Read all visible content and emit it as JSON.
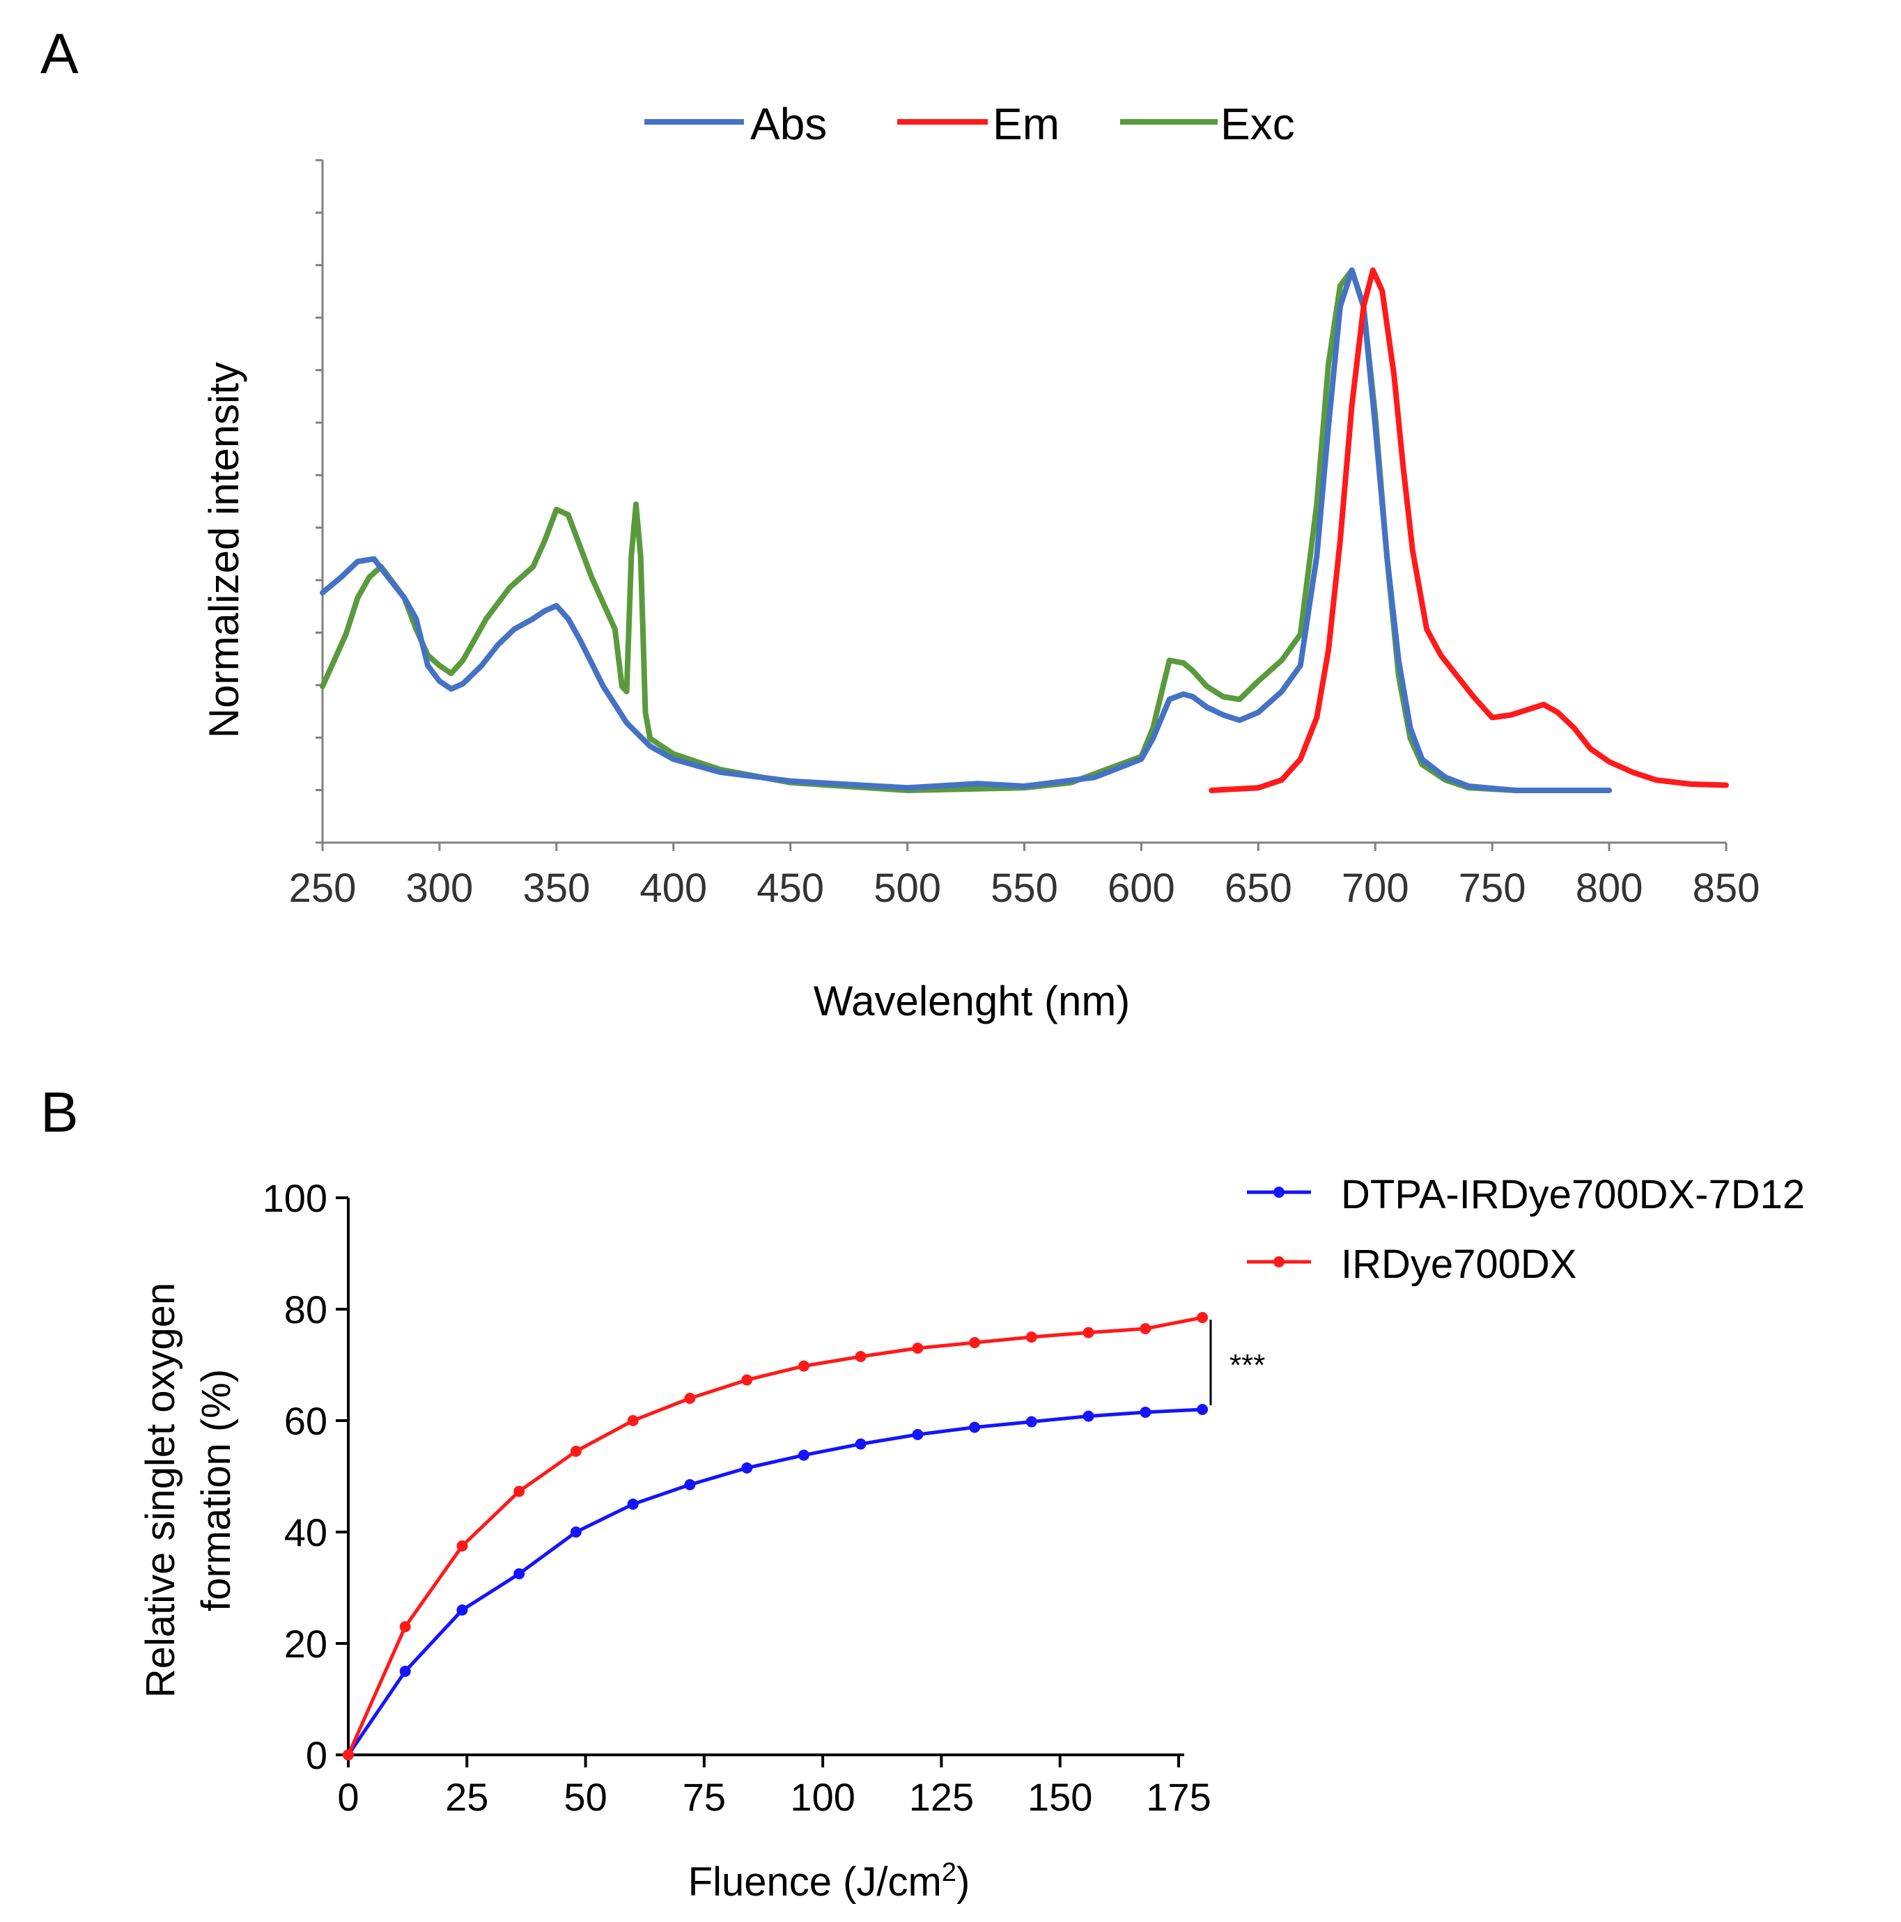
{
  "colors": {
    "abs": "#4472c4",
    "em": "#ff1a1a",
    "exc": "#5a9a3c",
    "dtpa": "#1414ff",
    "irdye": "#ff1a1a",
    "axis": "#000000",
    "axis_a": "#808080"
  },
  "chart_data": [
    {
      "panel": "A",
      "type": "line",
      "title": "",
      "xlabel": "Wavelenght (nm)",
      "ylabel": "Normalized intensity",
      "xlim": [
        250,
        850
      ],
      "ylim": [
        0,
        1.1
      ],
      "y_tick_count": 14,
      "x_ticks": [
        250,
        300,
        350,
        400,
        450,
        500,
        550,
        600,
        650,
        700,
        750,
        800,
        850
      ],
      "legend": [
        "Abs",
        "Em",
        "Exc"
      ],
      "legend_position": "top-center",
      "series": [
        {
          "name": "Abs",
          "x": [
            250,
            258,
            265,
            272,
            278,
            285,
            290,
            295,
            300,
            305,
            310,
            318,
            325,
            332,
            340,
            345,
            350,
            355,
            360,
            370,
            380,
            390,
            400,
            420,
            450,
            500,
            530,
            550,
            580,
            600,
            605,
            612,
            618,
            622,
            628,
            635,
            642,
            650,
            660,
            668,
            675,
            680,
            685,
            690,
            695,
            700,
            705,
            710,
            715,
            720,
            730,
            740,
            760,
            800
          ],
          "y": [
            0.38,
            0.41,
            0.44,
            0.445,
            0.41,
            0.37,
            0.33,
            0.24,
            0.21,
            0.195,
            0.205,
            0.24,
            0.28,
            0.31,
            0.33,
            0.345,
            0.355,
            0.33,
            0.29,
            0.2,
            0.13,
            0.085,
            0.06,
            0.035,
            0.018,
            0.005,
            0.013,
            0.008,
            0.025,
            0.06,
            0.1,
            0.175,
            0.185,
            0.18,
            0.16,
            0.145,
            0.135,
            0.15,
            0.19,
            0.24,
            0.45,
            0.7,
            0.93,
            1.0,
            0.93,
            0.7,
            0.45,
            0.25,
            0.12,
            0.06,
            0.025,
            0.008,
            0.0,
            0.0
          ]
        },
        {
          "name": "Em",
          "x": [
            630,
            650,
            660,
            668,
            675,
            680,
            685,
            690,
            695,
            699,
            703,
            708,
            712,
            716,
            722,
            728,
            735,
            742,
            750,
            758,
            765,
            772,
            778,
            785,
            792,
            800,
            810,
            820,
            835,
            850
          ],
          "y": [
            0.0,
            0.005,
            0.02,
            0.06,
            0.14,
            0.27,
            0.48,
            0.74,
            0.93,
            1.0,
            0.96,
            0.8,
            0.62,
            0.46,
            0.31,
            0.26,
            0.22,
            0.18,
            0.14,
            0.145,
            0.155,
            0.165,
            0.15,
            0.12,
            0.08,
            0.055,
            0.035,
            0.02,
            0.012,
            0.01
          ]
        },
        {
          "name": "Exc",
          "x": [
            250,
            255,
            260,
            265,
            270,
            275,
            280,
            285,
            290,
            295,
            300,
            305,
            310,
            315,
            320,
            330,
            340,
            345,
            350,
            355,
            360,
            365,
            370,
            375,
            378,
            380,
            382,
            384,
            386,
            388,
            390,
            400,
            420,
            450,
            500,
            550,
            570,
            600,
            605,
            612,
            618,
            622,
            628,
            635,
            642,
            650,
            660,
            668,
            675,
            680,
            685,
            690,
            695,
            700,
            705,
            710,
            715,
            720,
            730,
            740,
            760
          ],
          "y": [
            0.2,
            0.25,
            0.3,
            0.37,
            0.41,
            0.43,
            0.4,
            0.37,
            0.31,
            0.26,
            0.24,
            0.225,
            0.25,
            0.29,
            0.33,
            0.39,
            0.43,
            0.48,
            0.54,
            0.53,
            0.47,
            0.41,
            0.36,
            0.31,
            0.2,
            0.19,
            0.45,
            0.55,
            0.45,
            0.15,
            0.1,
            0.07,
            0.04,
            0.015,
            0.0,
            0.005,
            0.015,
            0.065,
            0.12,
            0.25,
            0.245,
            0.23,
            0.2,
            0.18,
            0.175,
            0.21,
            0.25,
            0.3,
            0.55,
            0.82,
            0.97,
            1.0,
            0.93,
            0.72,
            0.45,
            0.22,
            0.1,
            0.05,
            0.02,
            0.005,
            0.0
          ]
        }
      ]
    },
    {
      "panel": "B",
      "type": "line",
      "title": "",
      "xlabel_prefix": "Fluence (J/cm",
      "xlabel_sup": "2",
      "xlabel_suffix": ")",
      "ylabel_line1": "Relative singlet oxygen",
      "ylabel_line2": "formation (%)",
      "xlim": [
        0,
        180
      ],
      "ylim": [
        0,
        100
      ],
      "x_ticks": [
        0,
        25,
        50,
        75,
        100,
        125,
        150,
        175
      ],
      "y_ticks": [
        0,
        20,
        40,
        60,
        80,
        100
      ],
      "legend_position": "top-right outside",
      "significance": "***",
      "x": [
        0,
        12,
        24,
        36,
        48,
        60,
        72,
        84,
        96,
        108,
        120,
        132,
        144,
        156,
        168,
        180
      ],
      "series": [
        {
          "name": "DTPA-IRDye700DX-7D12",
          "values": [
            0,
            15,
            26,
            32.5,
            40,
            45,
            48.5,
            51.5,
            53.8,
            55.8,
            57.5,
            58.8,
            59.8,
            60.8,
            61.5,
            62
          ]
        },
        {
          "name": "IRDye700DX",
          "values": [
            0,
            23,
            37.5,
            47.3,
            54.5,
            60,
            64,
            67.3,
            69.8,
            71.5,
            73,
            74,
            75,
            75.8,
            76.5,
            78.5
          ]
        }
      ]
    }
  ],
  "panel_labels": {
    "a": "A",
    "b": "B"
  }
}
